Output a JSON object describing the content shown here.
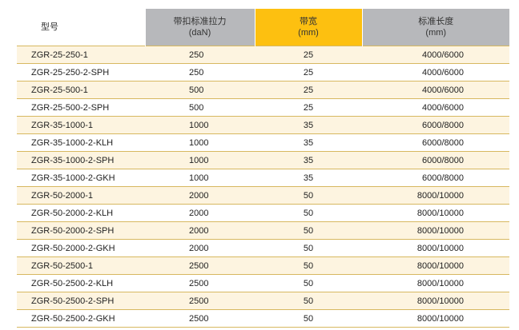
{
  "header": {
    "model": "型号",
    "force_line1": "带扣标准拉力",
    "force_line2": "(daN)",
    "width_line1": "带宽",
    "width_line2": "(mm)",
    "length_line1": "标准长度",
    "length_line2": "(mm)"
  },
  "colors": {
    "gray_header": "#b7b8bb",
    "gold_header": "#fdc010",
    "row_tint": "#fdf4e0",
    "rule": "#d7b860"
  },
  "rows": [
    {
      "model": "ZGR-25-250-1",
      "force": "250",
      "width": "25",
      "length": "4000/6000"
    },
    {
      "model": "ZGR-25-250-2-SPH",
      "force": "250",
      "width": "25",
      "length": "4000/6000"
    },
    {
      "model": "ZGR-25-500-1",
      "force": "500",
      "width": "25",
      "length": "4000/6000"
    },
    {
      "model": "ZGR-25-500-2-SPH",
      "force": "500",
      "width": "25",
      "length": "4000/6000"
    },
    {
      "model": "ZGR-35-1000-1",
      "force": "1000",
      "width": "35",
      "length": "6000/8000"
    },
    {
      "model": "ZGR-35-1000-2-KLH",
      "force": "1000",
      "width": "35",
      "length": "6000/8000"
    },
    {
      "model": "ZGR-35-1000-2-SPH",
      "force": "1000",
      "width": "35",
      "length": "6000/8000"
    },
    {
      "model": "ZGR-35-1000-2-GKH",
      "force": "1000",
      "width": "35",
      "length": "6000/8000"
    },
    {
      "model": "ZGR-50-2000-1",
      "force": "2000",
      "width": "50",
      "length": "8000/10000"
    },
    {
      "model": "ZGR-50-2000-2-KLH",
      "force": "2000",
      "width": "50",
      "length": "8000/10000"
    },
    {
      "model": "ZGR-50-2000-2-SPH",
      "force": "2000",
      "width": "50",
      "length": "8000/10000"
    },
    {
      "model": "ZGR-50-2000-2-GKH",
      "force": "2000",
      "width": "50",
      "length": "8000/10000"
    },
    {
      "model": "ZGR-50-2500-1",
      "force": "2500",
      "width": "50",
      "length": "8000/10000"
    },
    {
      "model": "ZGR-50-2500-2-KLH",
      "force": "2500",
      "width": "50",
      "length": "8000/10000"
    },
    {
      "model": "ZGR-50-2500-2-SPH",
      "force": "2500",
      "width": "50",
      "length": "8000/10000"
    },
    {
      "model": "ZGR-50-2500-2-GKH",
      "force": "2500",
      "width": "50",
      "length": "8000/10000"
    }
  ]
}
